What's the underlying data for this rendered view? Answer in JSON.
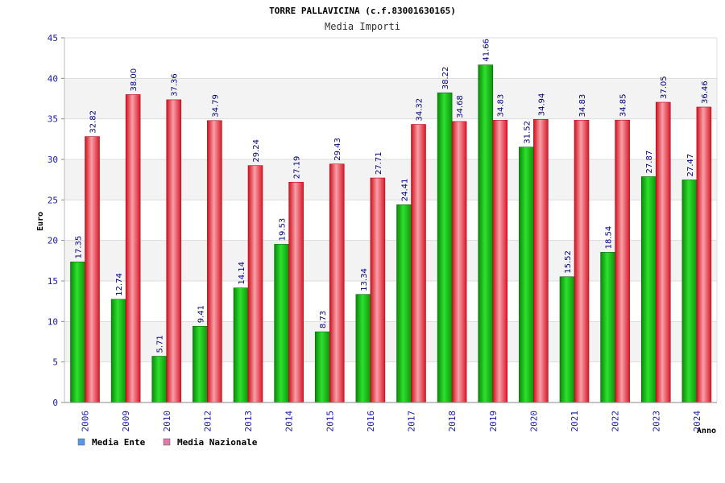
{
  "chart_data": {
    "type": "bar",
    "title": "TORRE PALLAVICINA (c.f.83001630165)",
    "subtitle": "Media Importi",
    "ylabel": "Euro",
    "xlabel": "Anno",
    "ylim": [
      0,
      45
    ],
    "yticks": [
      0,
      5,
      10,
      15,
      20,
      25,
      30,
      35,
      40,
      45
    ],
    "categories": [
      "2006",
      "2009",
      "2010",
      "2012",
      "2013",
      "2014",
      "2015",
      "2016",
      "2017",
      "2018",
      "2019",
      "2020",
      "2021",
      "2022",
      "2023",
      "2024"
    ],
    "series": [
      {
        "name": "Media Ente",
        "color": "#22c022",
        "legend_color": "#5599ee",
        "values": [
          17.35,
          12.74,
          5.71,
          9.41,
          14.14,
          19.53,
          8.73,
          13.34,
          24.41,
          38.22,
          41.66,
          31.52,
          15.52,
          18.54,
          27.87,
          27.47
        ]
      },
      {
        "name": "Media Nazionale",
        "color": "#e8283a",
        "legend_color": "#e07aa8",
        "values": [
          32.82,
          38.0,
          37.36,
          34.79,
          29.24,
          27.19,
          29.43,
          27.71,
          34.32,
          34.68,
          34.83,
          34.94,
          34.83,
          34.85,
          37.05,
          36.46
        ]
      }
    ],
    "value_labels": [
      [
        "17.35",
        "12.74",
        "5.71",
        "9.41",
        "14.14",
        "19.53",
        "8.73",
        "13.34",
        "24.41",
        "38.22",
        "41.66",
        "31.52",
        "15.52",
        "18.54",
        "27.87",
        "27.47"
      ],
      [
        "32.82",
        "38.00",
        "37.36",
        "34.79",
        "29.24",
        "27.19",
        "29.43",
        "27.71",
        "34.32",
        "34.68",
        "34.83",
        "34.94",
        "34.83",
        "34.85",
        "37.05",
        "36.46"
      ]
    ],
    "grid": true,
    "legend_position": "bottom-left"
  }
}
